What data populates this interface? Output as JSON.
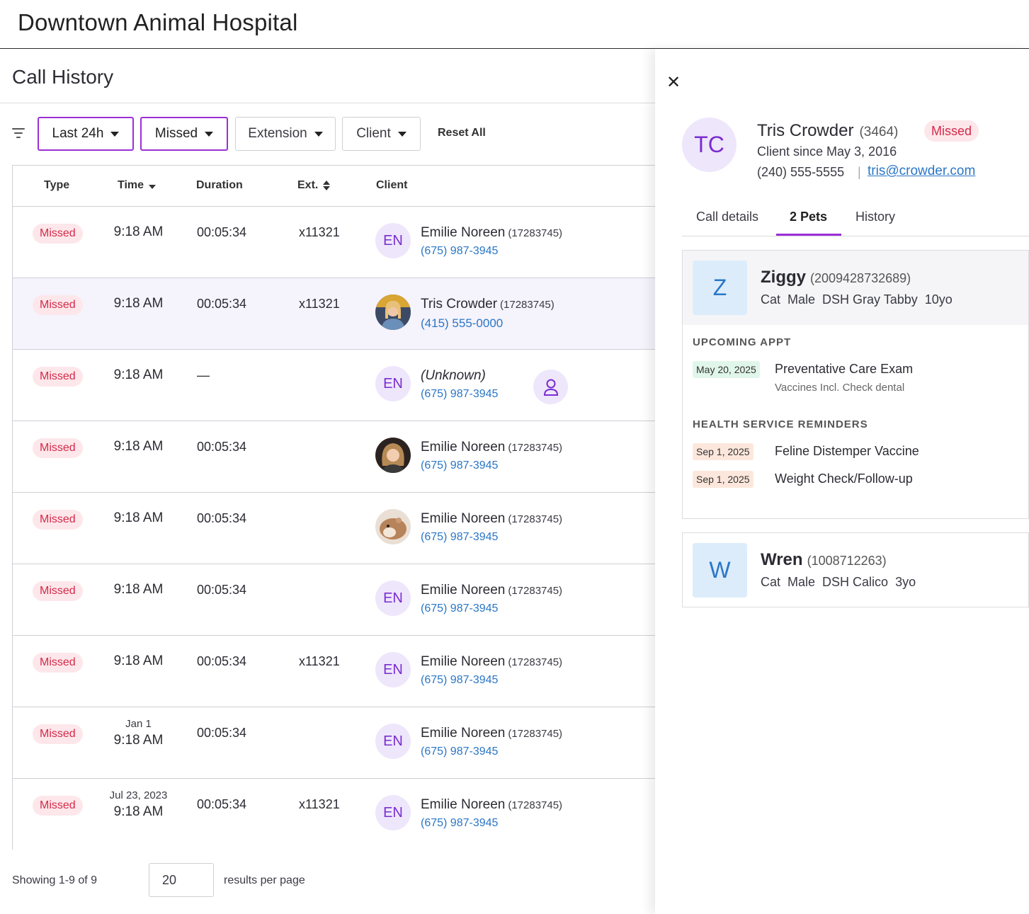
{
  "app": {
    "title": "Downtown Animal Hospital"
  },
  "page": {
    "title": "Call History"
  },
  "filters": {
    "chips": [
      {
        "label": "Last 24h",
        "active": true
      },
      {
        "label": "Missed",
        "active": true
      },
      {
        "label": "Extension",
        "active": false
      },
      {
        "label": "Client",
        "active": false
      }
    ],
    "reset_label": "Reset All"
  },
  "table": {
    "columns": [
      "Type",
      "Time",
      "Duration",
      "Ext.",
      "Client"
    ],
    "rows": [
      {
        "type": "Missed",
        "date": "",
        "time": "9:18 AM",
        "duration": "00:05:34",
        "ext": "x11321",
        "initials": "EN",
        "avatar": "initials",
        "name": "Emilie Noreen",
        "id": "(17283745)",
        "phone": "(675) 987-3945"
      },
      {
        "type": "Missed",
        "date": "",
        "time": "9:18 AM",
        "duration": "00:05:34",
        "ext": "x11321",
        "initials": "",
        "avatar": "photo-woman-blonde",
        "name": "Tris Crowder",
        "id": "(17283745)",
        "phone": "(415) 555-0000"
      },
      {
        "type": "Missed",
        "date": "",
        "time": "9:18 AM",
        "duration": "—",
        "ext": "",
        "initials": "EN",
        "avatar": "initials",
        "name": "(Unknown)",
        "id": "",
        "phone": "(675) 987-3945"
      },
      {
        "type": "Missed",
        "date": "",
        "time": "9:18 AM",
        "duration": "00:05:34",
        "ext": "",
        "initials": "",
        "avatar": "photo-woman-curly",
        "name": "Emilie Noreen",
        "id": "(17283745)",
        "phone": "(675) 987-3945"
      },
      {
        "type": "Missed",
        "date": "",
        "time": "9:18 AM",
        "duration": "00:05:34",
        "ext": "",
        "initials": "",
        "avatar": "photo-hamster",
        "name": "Emilie Noreen",
        "id": "(17283745)",
        "phone": "(675) 987-3945"
      },
      {
        "type": "Missed",
        "date": "",
        "time": "9:18 AM",
        "duration": "00:05:34",
        "ext": "",
        "initials": "EN",
        "avatar": "initials",
        "name": "Emilie Noreen",
        "id": "(17283745)",
        "phone": "(675) 987-3945"
      },
      {
        "type": "Missed",
        "date": "",
        "time": "9:18 AM",
        "duration": "00:05:34",
        "ext": "x11321",
        "initials": "EN",
        "avatar": "initials",
        "name": "Emilie Noreen",
        "id": "(17283745)",
        "phone": "(675) 987-3945"
      },
      {
        "type": "Missed",
        "date": "Jan 1",
        "time": "9:18 AM",
        "duration": "00:05:34",
        "ext": "",
        "initials": "EN",
        "avatar": "initials",
        "name": "Emilie Noreen",
        "id": "(17283745)",
        "phone": "(675) 987-3945"
      },
      {
        "type": "Missed",
        "date": "Jul 23, 2023",
        "time": "9:18 AM",
        "duration": "00:05:34",
        "ext": "x11321",
        "initials": "EN",
        "avatar": "initials",
        "name": "Emilie Noreen",
        "id": "(17283745)",
        "phone": "(675) 987-3945"
      }
    ]
  },
  "pagination": {
    "showing": "Showing 1-9 of 9",
    "per_page": "20",
    "per_page_label": "results per page"
  },
  "drawer": {
    "close_icon": "close-icon",
    "client": {
      "initials": "TC",
      "name": "Tris Crowder",
      "id": "(3464)",
      "status": "Missed",
      "since": "Client since May 3, 2016",
      "phone": "(240) 555-5555",
      "separator": "|",
      "email": "tris@crowder.com"
    },
    "tabs": [
      {
        "label": "Call details",
        "active": false
      },
      {
        "label": "2 Pets",
        "active": true
      },
      {
        "label": "History",
        "active": false
      }
    ],
    "pets": [
      {
        "initial": "Z",
        "name": "Ziggy",
        "id": "(2009428732689)",
        "info": [
          "Cat",
          "Male",
          "DSH Gray Tabby",
          "10yo"
        ],
        "upcoming_label": "UPCOMING APPT",
        "appt": {
          "date": "May 20, 2025",
          "title": "Preventative Care Exam",
          "sub": "Vaccines Incl. Check dental"
        },
        "reminders_label": "HEALTH SERVICE REMINDERS",
        "reminders": [
          {
            "date": "Sep 1, 2025",
            "title": "Feline Distemper Vaccine"
          },
          {
            "date": "Sep 1, 2025",
            "title": "Weight Check/Follow-up"
          }
        ]
      },
      {
        "initial": "W",
        "name": "Wren",
        "id": "(1008712263)",
        "info": [
          "Cat",
          "Male",
          "DSH Calico",
          "3yo"
        ]
      }
    ]
  },
  "colors": {
    "accent": "#9c2fd6",
    "missed_bg": "#fde7ea",
    "missed_text": "#d42a4b",
    "link": "#2a76c6"
  }
}
